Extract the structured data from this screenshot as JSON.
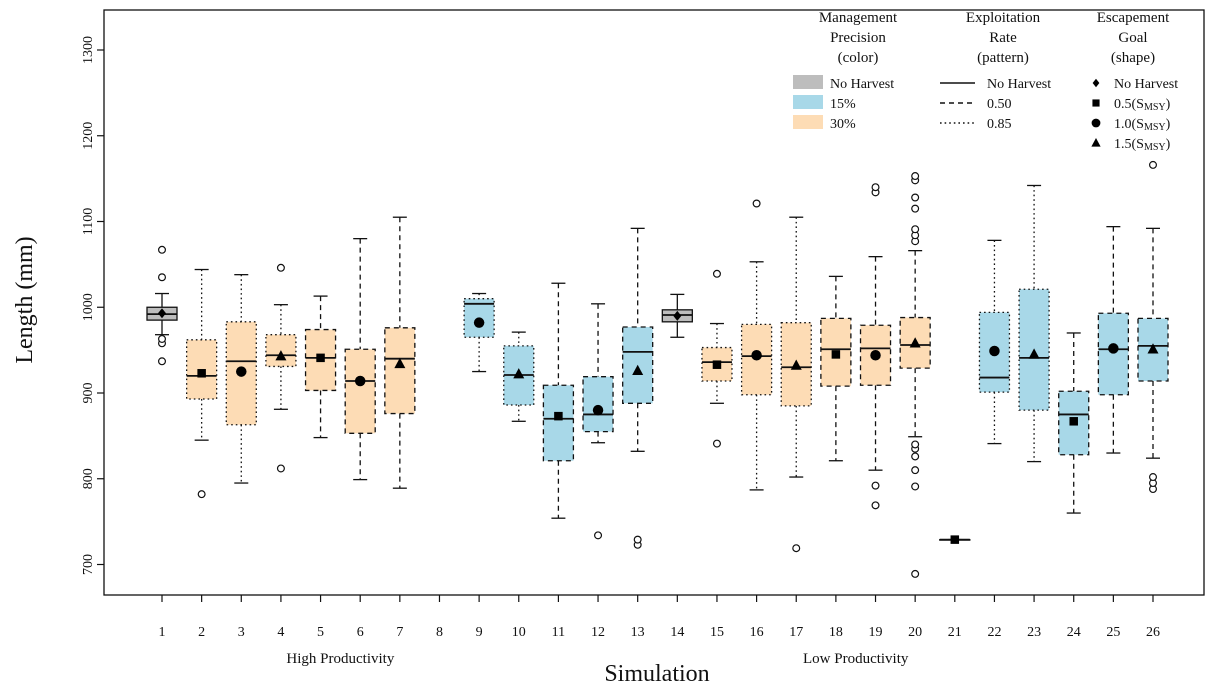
{
  "chart_data": {
    "type": "box",
    "xlabel": "Simulation",
    "ylabel": "Length (mm)",
    "ylim": [
      665,
      1345
    ],
    "y_ticks": [
      700,
      800,
      900,
      1000,
      1100,
      1200,
      1300
    ],
    "x_ticks": [
      "1",
      "2",
      "3",
      "4",
      "5",
      "6",
      "7",
      "8",
      "9",
      "10",
      "11",
      "12",
      "13",
      "14",
      "15",
      "16",
      "17",
      "18",
      "19",
      "20",
      "21",
      "22",
      "23",
      "24",
      "25",
      "26"
    ],
    "group_labels": [
      {
        "text": "High Productivity",
        "center": 5.5
      },
      {
        "text": "Low Productivity",
        "center": 18.5
      }
    ],
    "colors": {
      "none": "#bdbdbd",
      "p15": "#a8d8e8",
      "p30": "#fddcb5"
    },
    "legend": {
      "precision": {
        "title": [
          "Management",
          "Precision",
          "(color)"
        ],
        "items": [
          {
            "label": "No Harvest",
            "color": "#bdbdbd"
          },
          {
            "label": "15%",
            "color": "#a8d8e8"
          },
          {
            "label": "30%",
            "color": "#fddcb5"
          }
        ]
      },
      "rate": {
        "title": [
          "Exploitation",
          "Rate",
          "(pattern)"
        ],
        "items": [
          {
            "label": "No Harvest",
            "dash": "solid"
          },
          {
            "label": "0.50",
            "dash": "dashed"
          },
          {
            "label": "0.85",
            "dash": "dotted"
          }
        ]
      },
      "goal": {
        "title": [
          "Escapement",
          "Goal",
          "(shape)"
        ],
        "items": [
          {
            "label": "No Harvest",
            "shape": "diamond"
          },
          {
            "label_main": "0.5(S",
            "label_sub": "MSY",
            "label_end": ")",
            "shape": "square"
          },
          {
            "label_main": "1.0(S",
            "label_sub": "MSY",
            "label_end": ")",
            "shape": "circle"
          },
          {
            "label_main": "1.5(S",
            "label_sub": "MSY",
            "label_end": ")",
            "shape": "triangle"
          }
        ]
      }
    },
    "boxes": [
      {
        "sim": 1,
        "color": "none",
        "dash": "solid",
        "whisker_low": 968,
        "q1": 985,
        "median": 992,
        "q3": 1000,
        "whisker_high": 1016,
        "mean": 993,
        "shape": "diamond",
        "outliers": [
          937,
          958,
          963,
          1035,
          1067
        ]
      },
      {
        "sim": 2,
        "color": "p30",
        "dash": "dotted",
        "whisker_low": 845,
        "q1": 893,
        "median": 920,
        "q3": 962,
        "whisker_high": 1044,
        "mean": 923,
        "shape": "square",
        "outliers": [
          782
        ]
      },
      {
        "sim": 3,
        "color": "p30",
        "dash": "dotted",
        "whisker_low": 795,
        "q1": 863,
        "median": 937,
        "q3": 983,
        "whisker_high": 1038,
        "mean": 925,
        "shape": "circle",
        "outliers": []
      },
      {
        "sim": 4,
        "color": "p30",
        "dash": "dotted",
        "whisker_low": 881,
        "q1": 931,
        "median": 944,
        "q3": 968,
        "whisker_high": 1003,
        "mean": 943,
        "shape": "triangle",
        "outliers": [
          812,
          1046
        ]
      },
      {
        "sim": 5,
        "color": "p30",
        "dash": "dashed",
        "whisker_low": 848,
        "q1": 903,
        "median": 941,
        "q3": 974,
        "whisker_high": 1013,
        "mean": 941,
        "shape": "square",
        "outliers": []
      },
      {
        "sim": 6,
        "color": "p30",
        "dash": "dashed",
        "whisker_low": 799,
        "q1": 853,
        "median": 914,
        "q3": 951,
        "whisker_high": 1080,
        "mean": 914,
        "shape": "circle",
        "outliers": []
      },
      {
        "sim": 7,
        "color": "p30",
        "dash": "dashed",
        "whisker_low": 789,
        "q1": 876,
        "median": 940,
        "q3": 976,
        "whisker_high": 1105,
        "mean": 934,
        "shape": "triangle",
        "outliers": []
      },
      {
        "sim": 9,
        "color": "p15",
        "dash": "dotted",
        "whisker_low": 925,
        "q1": 965,
        "median": 1004,
        "q3": 1010,
        "whisker_high": 1016,
        "mean": 982,
        "shape": "circle",
        "outliers": []
      },
      {
        "sim": 10,
        "color": "p15",
        "dash": "dotted",
        "whisker_low": 867,
        "q1": 886,
        "median": 921,
        "q3": 955,
        "whisker_high": 971,
        "mean": 922,
        "shape": "triangle",
        "outliers": []
      },
      {
        "sim": 11,
        "color": "p15",
        "dash": "dashed",
        "whisker_low": 754,
        "q1": 821,
        "median": 870,
        "q3": 909,
        "whisker_high": 1028,
        "mean": 873,
        "shape": "square",
        "outliers": []
      },
      {
        "sim": 12,
        "color": "p15",
        "dash": "dashed",
        "whisker_low": 842,
        "q1": 855,
        "median": 875,
        "q3": 919,
        "whisker_high": 1004,
        "mean": 880,
        "shape": "circle",
        "outliers": [
          734
        ]
      },
      {
        "sim": 13,
        "color": "p15",
        "dash": "dashed",
        "whisker_low": 832,
        "q1": 888,
        "median": 948,
        "q3": 977,
        "whisker_high": 1092,
        "mean": 926,
        "shape": "triangle",
        "outliers": [
          723,
          729
        ]
      },
      {
        "sim": 14,
        "color": "none",
        "dash": "solid",
        "whisker_low": 965,
        "q1": 983,
        "median": 991,
        "q3": 997,
        "whisker_high": 1015,
        "mean": 990,
        "shape": "diamond",
        "outliers": []
      },
      {
        "sim": 15,
        "color": "p30",
        "dash": "dotted",
        "whisker_low": 888,
        "q1": 914,
        "median": 936,
        "q3": 953,
        "whisker_high": 981,
        "mean": 933,
        "shape": "square",
        "outliers": [
          841,
          1039
        ]
      },
      {
        "sim": 16,
        "color": "p30",
        "dash": "dotted",
        "whisker_low": 787,
        "q1": 898,
        "median": 943,
        "q3": 980,
        "whisker_high": 1053,
        "mean": 944,
        "shape": "circle",
        "outliers": [
          1121
        ]
      },
      {
        "sim": 17,
        "color": "p30",
        "dash": "dotted",
        "whisker_low": 802,
        "q1": 885,
        "median": 930,
        "q3": 982,
        "whisker_high": 1105,
        "mean": 932,
        "shape": "triangle",
        "outliers": [
          719
        ]
      },
      {
        "sim": 18,
        "color": "p30",
        "dash": "dashed",
        "whisker_low": 821,
        "q1": 908,
        "median": 951,
        "q3": 987,
        "whisker_high": 1036,
        "mean": 945,
        "shape": "square",
        "outliers": []
      },
      {
        "sim": 19,
        "color": "p30",
        "dash": "dashed",
        "whisker_low": 810,
        "q1": 909,
        "median": 952,
        "q3": 979,
        "whisker_high": 1059,
        "mean": 944,
        "shape": "circle",
        "outliers": [
          769,
          792,
          1134,
          1140
        ]
      },
      {
        "sim": 20,
        "color": "p30",
        "dash": "dashed",
        "whisker_low": 849,
        "q1": 929,
        "median": 956,
        "q3": 988,
        "whisker_high": 1066,
        "mean": 958,
        "shape": "triangle",
        "outliers": [
          689,
          791,
          810,
          826,
          835,
          840,
          1077,
          1084,
          1091,
          1115,
          1128,
          1148,
          1153
        ]
      },
      {
        "sim": 21,
        "color": "none",
        "dash": "solid",
        "whisker_low": 729,
        "q1": 729,
        "median": 729,
        "q3": 729,
        "whisker_high": 729,
        "mean": 729,
        "shape": "square",
        "outliers": []
      },
      {
        "sim": 22,
        "color": "p15",
        "dash": "dotted",
        "whisker_low": 841,
        "q1": 901,
        "median": 918,
        "q3": 994,
        "whisker_high": 1078,
        "mean": 949,
        "shape": "circle",
        "outliers": []
      },
      {
        "sim": 23,
        "color": "p15",
        "dash": "dotted",
        "whisker_low": 820,
        "q1": 880,
        "median": 941,
        "q3": 1021,
        "whisker_high": 1142,
        "mean": 945,
        "shape": "triangle",
        "outliers": []
      },
      {
        "sim": 24,
        "color": "p15",
        "dash": "dashed",
        "whisker_low": 760,
        "q1": 828,
        "median": 875,
        "q3": 902,
        "whisker_high": 970,
        "mean": 867,
        "shape": "square",
        "outliers": []
      },
      {
        "sim": 25,
        "color": "p15",
        "dash": "dashed",
        "whisker_low": 830,
        "q1": 898,
        "median": 951,
        "q3": 993,
        "whisker_high": 1094,
        "mean": 952,
        "shape": "circle",
        "outliers": []
      },
      {
        "sim": 26,
        "color": "p15",
        "dash": "dashed",
        "whisker_low": 824,
        "q1": 914,
        "median": 955,
        "q3": 987,
        "whisker_high": 1092,
        "mean": 951,
        "shape": "triangle",
        "outliers": [
          788,
          795,
          802,
          1166
        ]
      }
    ]
  }
}
